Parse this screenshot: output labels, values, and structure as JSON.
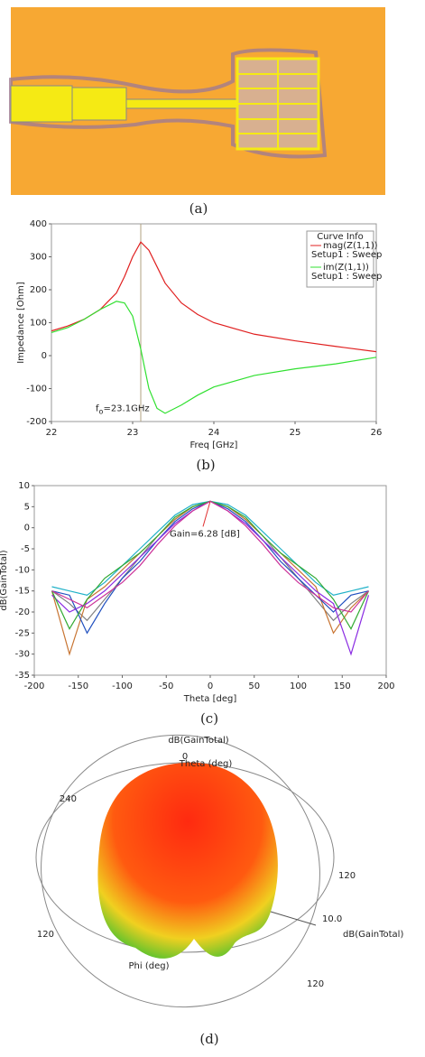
{
  "captions": [
    "(a)",
    "(b)",
    "(c)",
    "(d)"
  ],
  "chart_data": [
    {
      "type": "line",
      "xlabel": "Freq [GHz]",
      "ylabel": "Impedance [Ohm]",
      "x": [
        22,
        22.2,
        22.4,
        22.6,
        22.8,
        22.9,
        23.0,
        23.1,
        23.2,
        23.3,
        23.4,
        23.6,
        23.8,
        24.0,
        24.5,
        25,
        25.5,
        26
      ],
      "xlim": [
        22,
        26
      ],
      "xticks": [
        22,
        23,
        24,
        25,
        26
      ],
      "ylim": [
        -200,
        400
      ],
      "yticks": [
        -200,
        -100,
        0,
        100,
        200,
        300,
        400
      ],
      "legend_title": "Curve Info",
      "series": [
        {
          "name": "mag(Z(1,1))",
          "setup": "Setup1 : Sweep",
          "color": "#e02020",
          "values": [
            75,
            90,
            110,
            140,
            190,
            240,
            300,
            345,
            320,
            270,
            220,
            160,
            125,
            100,
            65,
            45,
            28,
            12
          ]
        },
        {
          "name": "im(Z(1,1))",
          "setup": "Setup1 : Sweep",
          "color": "#30e030",
          "values": [
            70,
            85,
            110,
            140,
            165,
            160,
            120,
            20,
            -100,
            -160,
            -175,
            -150,
            -120,
            -95,
            -60,
            -40,
            -25,
            -5
          ]
        }
      ],
      "marker_x": 23.1,
      "annotation": {
        "base": "f",
        "subscript": "o",
        "text": "=23.1GHz"
      }
    },
    {
      "type": "line",
      "xlabel": "Theta [deg]",
      "ylabel": "dB(GainTotal)",
      "x": [
        -180,
        -160,
        -140,
        -120,
        -100,
        -80,
        -60,
        -40,
        -20,
        0,
        20,
        40,
        60,
        80,
        100,
        120,
        140,
        160,
        180
      ],
      "xlim": [
        -200,
        200
      ],
      "xticks": [
        -200,
        -150,
        -100,
        -50,
        0,
        50,
        100,
        150,
        200
      ],
      "ylim": [
        -35,
        10
      ],
      "yticks": [
        -35,
        -30,
        -25,
        -20,
        -15,
        -10,
        -5,
        0,
        5,
        10
      ],
      "series": [
        {
          "color": "#808080",
          "values": [
            -15,
            -18,
            -22,
            -17,
            -12,
            -7,
            -2,
            2,
            5,
            6.28,
            5,
            2,
            -2,
            -7,
            -12,
            -17,
            -22,
            -18,
            -15
          ]
        },
        {
          "color": "#c87533",
          "values": [
            -15,
            -30,
            -17,
            -14,
            -10,
            -6,
            -2,
            2,
            5,
            6.28,
            5,
            2,
            -2,
            -6,
            -10,
            -14,
            -25,
            -19,
            -15
          ]
        },
        {
          "color": "#1f4fbf",
          "values": [
            -15,
            -16,
            -25,
            -18,
            -12,
            -8,
            -3,
            1.5,
            4.5,
            6.28,
            4.5,
            1.5,
            -3,
            -8,
            -12,
            -16,
            -20,
            -16,
            -15
          ]
        },
        {
          "color": "#20b2c8",
          "values": [
            -14,
            -15,
            -16,
            -13,
            -9,
            -5,
            -1,
            3,
            5.5,
            6.28,
            5.5,
            3,
            -1,
            -5,
            -9,
            -13,
            -16,
            -15,
            -14
          ]
        },
        {
          "color": "#8a2be2",
          "values": [
            -16,
            -20,
            -18,
            -15,
            -11,
            -7,
            -3,
            1,
            4,
            6.28,
            4,
            1,
            -3,
            -7,
            -11,
            -15,
            -18,
            -30,
            -16
          ]
        },
        {
          "color": "#33aa33",
          "values": [
            -15,
            -24,
            -17,
            -12,
            -9,
            -6,
            -2,
            2.5,
            5,
            6.28,
            5,
            2.5,
            -2,
            -6,
            -9,
            -12,
            -17,
            -24,
            -15
          ]
        },
        {
          "color": "#cc3399",
          "values": [
            -15,
            -17,
            -19,
            -16,
            -13,
            -9,
            -4,
            0.5,
            4,
            6.28,
            4,
            0.5,
            -4,
            -9,
            -13,
            -16,
            -19,
            -20,
            -15
          ]
        }
      ],
      "annotation": "Gain=6.28 [dB]",
      "annotation_point": [
        0,
        6.28
      ]
    }
  ],
  "pattern_3d": {
    "labels": [
      "dB(GainTotal)",
      "0",
      "Theta (deg)",
      "240",
      "120",
      "120",
      "120",
      "10.0",
      "dB(GainTotal)",
      "Phi (deg)"
    ]
  }
}
